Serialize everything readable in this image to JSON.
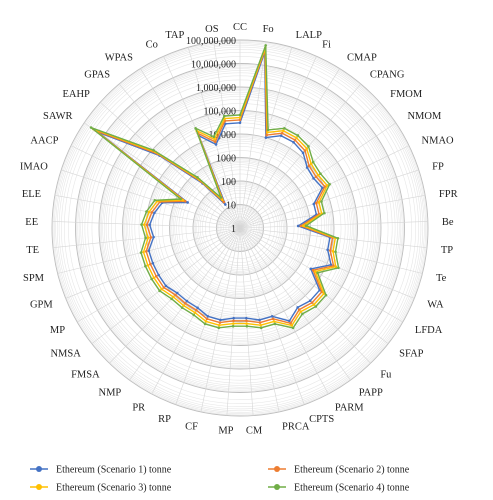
{
  "chart_data": {
    "type": "radar",
    "scale": "log",
    "rlim": [
      1,
      100000000
    ],
    "tick_labels": [
      "1",
      "10",
      "100",
      "1000",
      "10,000",
      "100,000",
      "1,000,000",
      "10,000,000",
      "100,000,000"
    ],
    "grid": true,
    "legend_position": "bottom",
    "categories": [
      "CC",
      "Fo",
      "LALP",
      "Fi",
      "CMAP",
      "CPANG",
      "FMOM",
      "NMOM",
      "NMAO",
      "FP",
      "FPR",
      "Be",
      "TP",
      "Te",
      "WA",
      "LFDA",
      "SFAP",
      "Fu",
      "PAPP",
      "PARM",
      "CPTS",
      "PRCA",
      "CM",
      "MP",
      "CF",
      "RP",
      "PR",
      "NMP",
      "FMSA",
      "NMSA",
      "MP",
      "GPM",
      "SPM",
      "TE",
      "EE",
      "ELE",
      "IMAO",
      "AACP",
      "SAWR",
      "EAHP",
      "GPAS",
      "WPAS",
      "Co",
      "TAP",
      "OS"
    ],
    "series": [
      {
        "name": "Ethereum (Scenario 1) tonne",
        "color": "#4472C4",
        "values": [
          30000,
          35000000,
          10000,
          20000,
          20000,
          15000,
          7000,
          6000,
          8000,
          2000,
          2000,
          300,
          7000,
          7000,
          15000,
          3000,
          20000,
          20000,
          15000,
          30000,
          10000,
          10000,
          7000,
          7000,
          10000,
          10000,
          7000,
          7000,
          7000,
          10000,
          10000,
          10000,
          10000,
          5000,
          7000,
          5000,
          3000,
          300,
          20000000,
          40000,
          300,
          15,
          20000,
          5000,
          30000
        ]
      },
      {
        "name": "Ethereum (Scenario 2) tonne",
        "color": "#ED7D31",
        "values": [
          40000,
          45000000,
          13000,
          26000,
          26000,
          20000,
          9000,
          8000,
          10500,
          2600,
          2600,
          390,
          9100,
          9100,
          19500,
          3900,
          26000,
          26000,
          19500,
          39000,
          13000,
          13000,
          9100,
          9100,
          13000,
          13000,
          9100,
          9100,
          9100,
          13000,
          13000,
          13000,
          13000,
          6500,
          9100,
          6500,
          3900,
          390,
          26000000,
          52000,
          390,
          20,
          26000,
          6500,
          40000
        ]
      },
      {
        "name": "Ethereum (Scenario 3) tonne",
        "color": "#FFC000",
        "values": [
          50000,
          55000000,
          17000,
          34000,
          34000,
          26000,
          12000,
          10500,
          13500,
          3400,
          3400,
          500,
          12000,
          12000,
          25000,
          5000,
          34000,
          34000,
          25000,
          50000,
          17000,
          17000,
          12000,
          12000,
          17000,
          17000,
          12000,
          12000,
          12000,
          17000,
          17000,
          17000,
          17000,
          8500,
          12000,
          8500,
          5000,
          500,
          34000000,
          68000,
          500,
          26,
          34000,
          8500,
          50000
        ]
      },
      {
        "name": "Ethereum (Scenario 4) tonne",
        "color": "#70AD47",
        "values": [
          65000,
          70000000,
          22000,
          44000,
          44000,
          34000,
          15500,
          13500,
          17500,
          4400,
          4400,
          650,
          15500,
          15500,
          33000,
          6500,
          44000,
          44000,
          33000,
          65000,
          22000,
          22000,
          15500,
          15500,
          22000,
          22000,
          15500,
          15500,
          15500,
          22000,
          22000,
          22000,
          22000,
          11000,
          15500,
          11000,
          6500,
          650,
          44000000,
          88000,
          650,
          34,
          44000,
          11000,
          65000
        ]
      }
    ]
  }
}
